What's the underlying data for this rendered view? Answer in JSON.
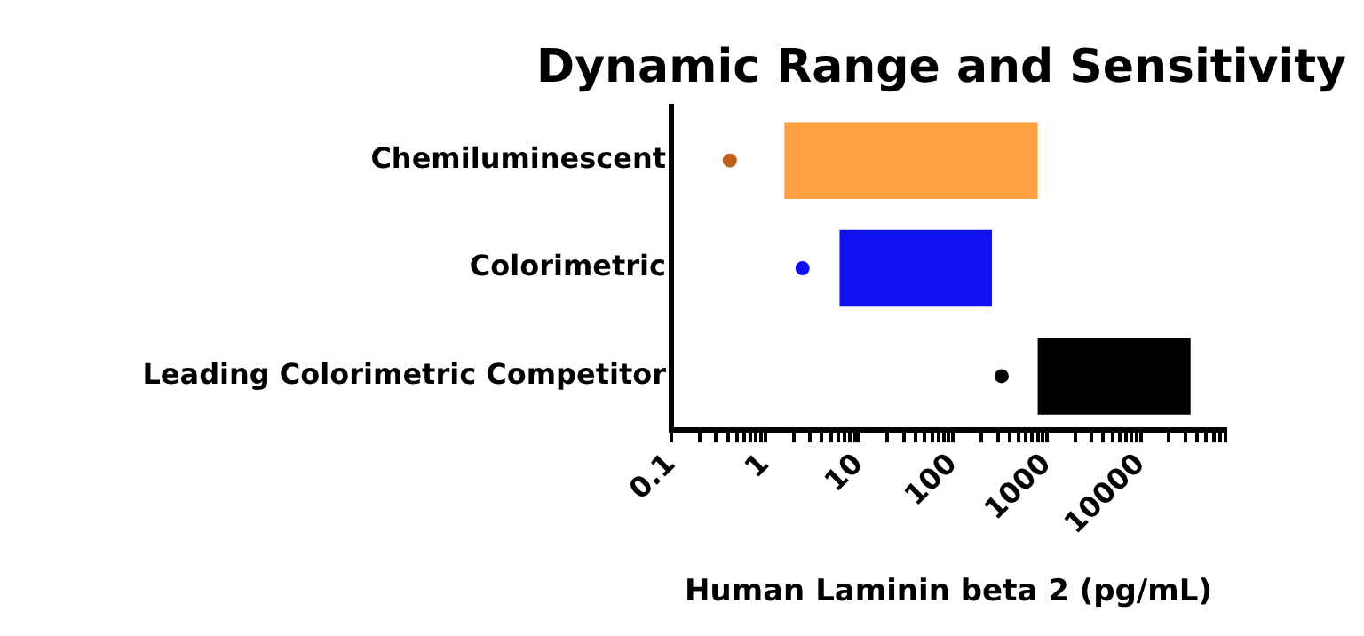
{
  "chart_data": {
    "type": "bar",
    "orientation": "horizontal",
    "title": "Dynamic Range and Sensitivity",
    "xlabel": "Human Laminin beta 2 (pg/mL)",
    "categories": [
      "Chemiluminescent",
      "Colorimetric",
      "Leading Colorimetric Competitor"
    ],
    "series": [
      {
        "type": "bar",
        "colors": [
          "#ffa040",
          "#1010f0",
          "#000000"
        ],
        "base": [
          1.6,
          6.2,
          800
        ],
        "values": [
          798.4,
          253.8,
          33200
        ]
      },
      {
        "type": "scatter",
        "x": [
          "Chemiluminescent",
          "Colorimetric",
          "Leading Colorimetric Competitor"
        ],
        "colors": [
          "#c0601a",
          "#1010f0",
          "#000000"
        ],
        "values": [
          0.42,
          2.5,
          330
        ]
      }
    ],
    "log": "x",
    "xlim": [
      0.1,
      80000
    ],
    "xticks": [
      0.1,
      {
        "value": 0.2,
        "label": null
      },
      {
        "value": 0.3,
        "label": null
      },
      {
        "value": 0.4,
        "label": null
      },
      {
        "value": 0.5,
        "label": null
      },
      {
        "value": 0.6,
        "label": null
      },
      {
        "value": 0.7,
        "label": null
      },
      {
        "value": 0.8,
        "label": null
      },
      {
        "value": 0.9,
        "label": null
      },
      1,
      {
        "value": 2,
        "label": null
      },
      {
        "value": 3,
        "label": null
      },
      {
        "value": 4,
        "label": null
      },
      {
        "value": 5,
        "label": null
      },
      {
        "value": 6,
        "label": null
      },
      {
        "value": 7,
        "label": null
      },
      {
        "value": 8,
        "label": null
      },
      {
        "value": 9,
        "label": null
      },
      10,
      {
        "value": 20,
        "label": null
      },
      {
        "value": 30,
        "label": null
      },
      {
        "value": 40,
        "label": null
      },
      {
        "value": 50,
        "label": null
      },
      {
        "value": 60,
        "label": null
      },
      {
        "value": 70,
        "label": null
      },
      {
        "value": 80,
        "label": null
      },
      {
        "value": 90,
        "label": null
      },
      100,
      {
        "value": 200,
        "label": null
      },
      {
        "value": 300,
        "label": null
      },
      {
        "value": 400,
        "label": null
      },
      {
        "value": 500,
        "label": null
      },
      {
        "value": 600,
        "label": null
      },
      {
        "value": 700,
        "label": null
      },
      {
        "value": 800,
        "label": null
      },
      {
        "value": 900,
        "label": null
      },
      1000,
      {
        "value": 2000,
        "label": null
      },
      {
        "value": 3000,
        "label": null
      },
      {
        "value": 4000,
        "label": null
      },
      {
        "value": 5000,
        "label": null
      },
      {
        "value": 6000,
        "label": null
      },
      {
        "value": 7000,
        "label": null
      },
      {
        "value": 8000,
        "label": null
      },
      {
        "value": 9000,
        "label": null
      },
      10000,
      {
        "value": 20000,
        "label": null
      },
      {
        "value": 30000,
        "label": null
      },
      {
        "value": 40000,
        "label": null
      },
      {
        "value": 50000,
        "label": null
      },
      {
        "value": 60000,
        "label": null
      },
      {
        "value": 70000,
        "label": null
      },
      {
        "value": 80000,
        "label": null
      }
    ],
    "grid": false,
    "legend": false
  }
}
